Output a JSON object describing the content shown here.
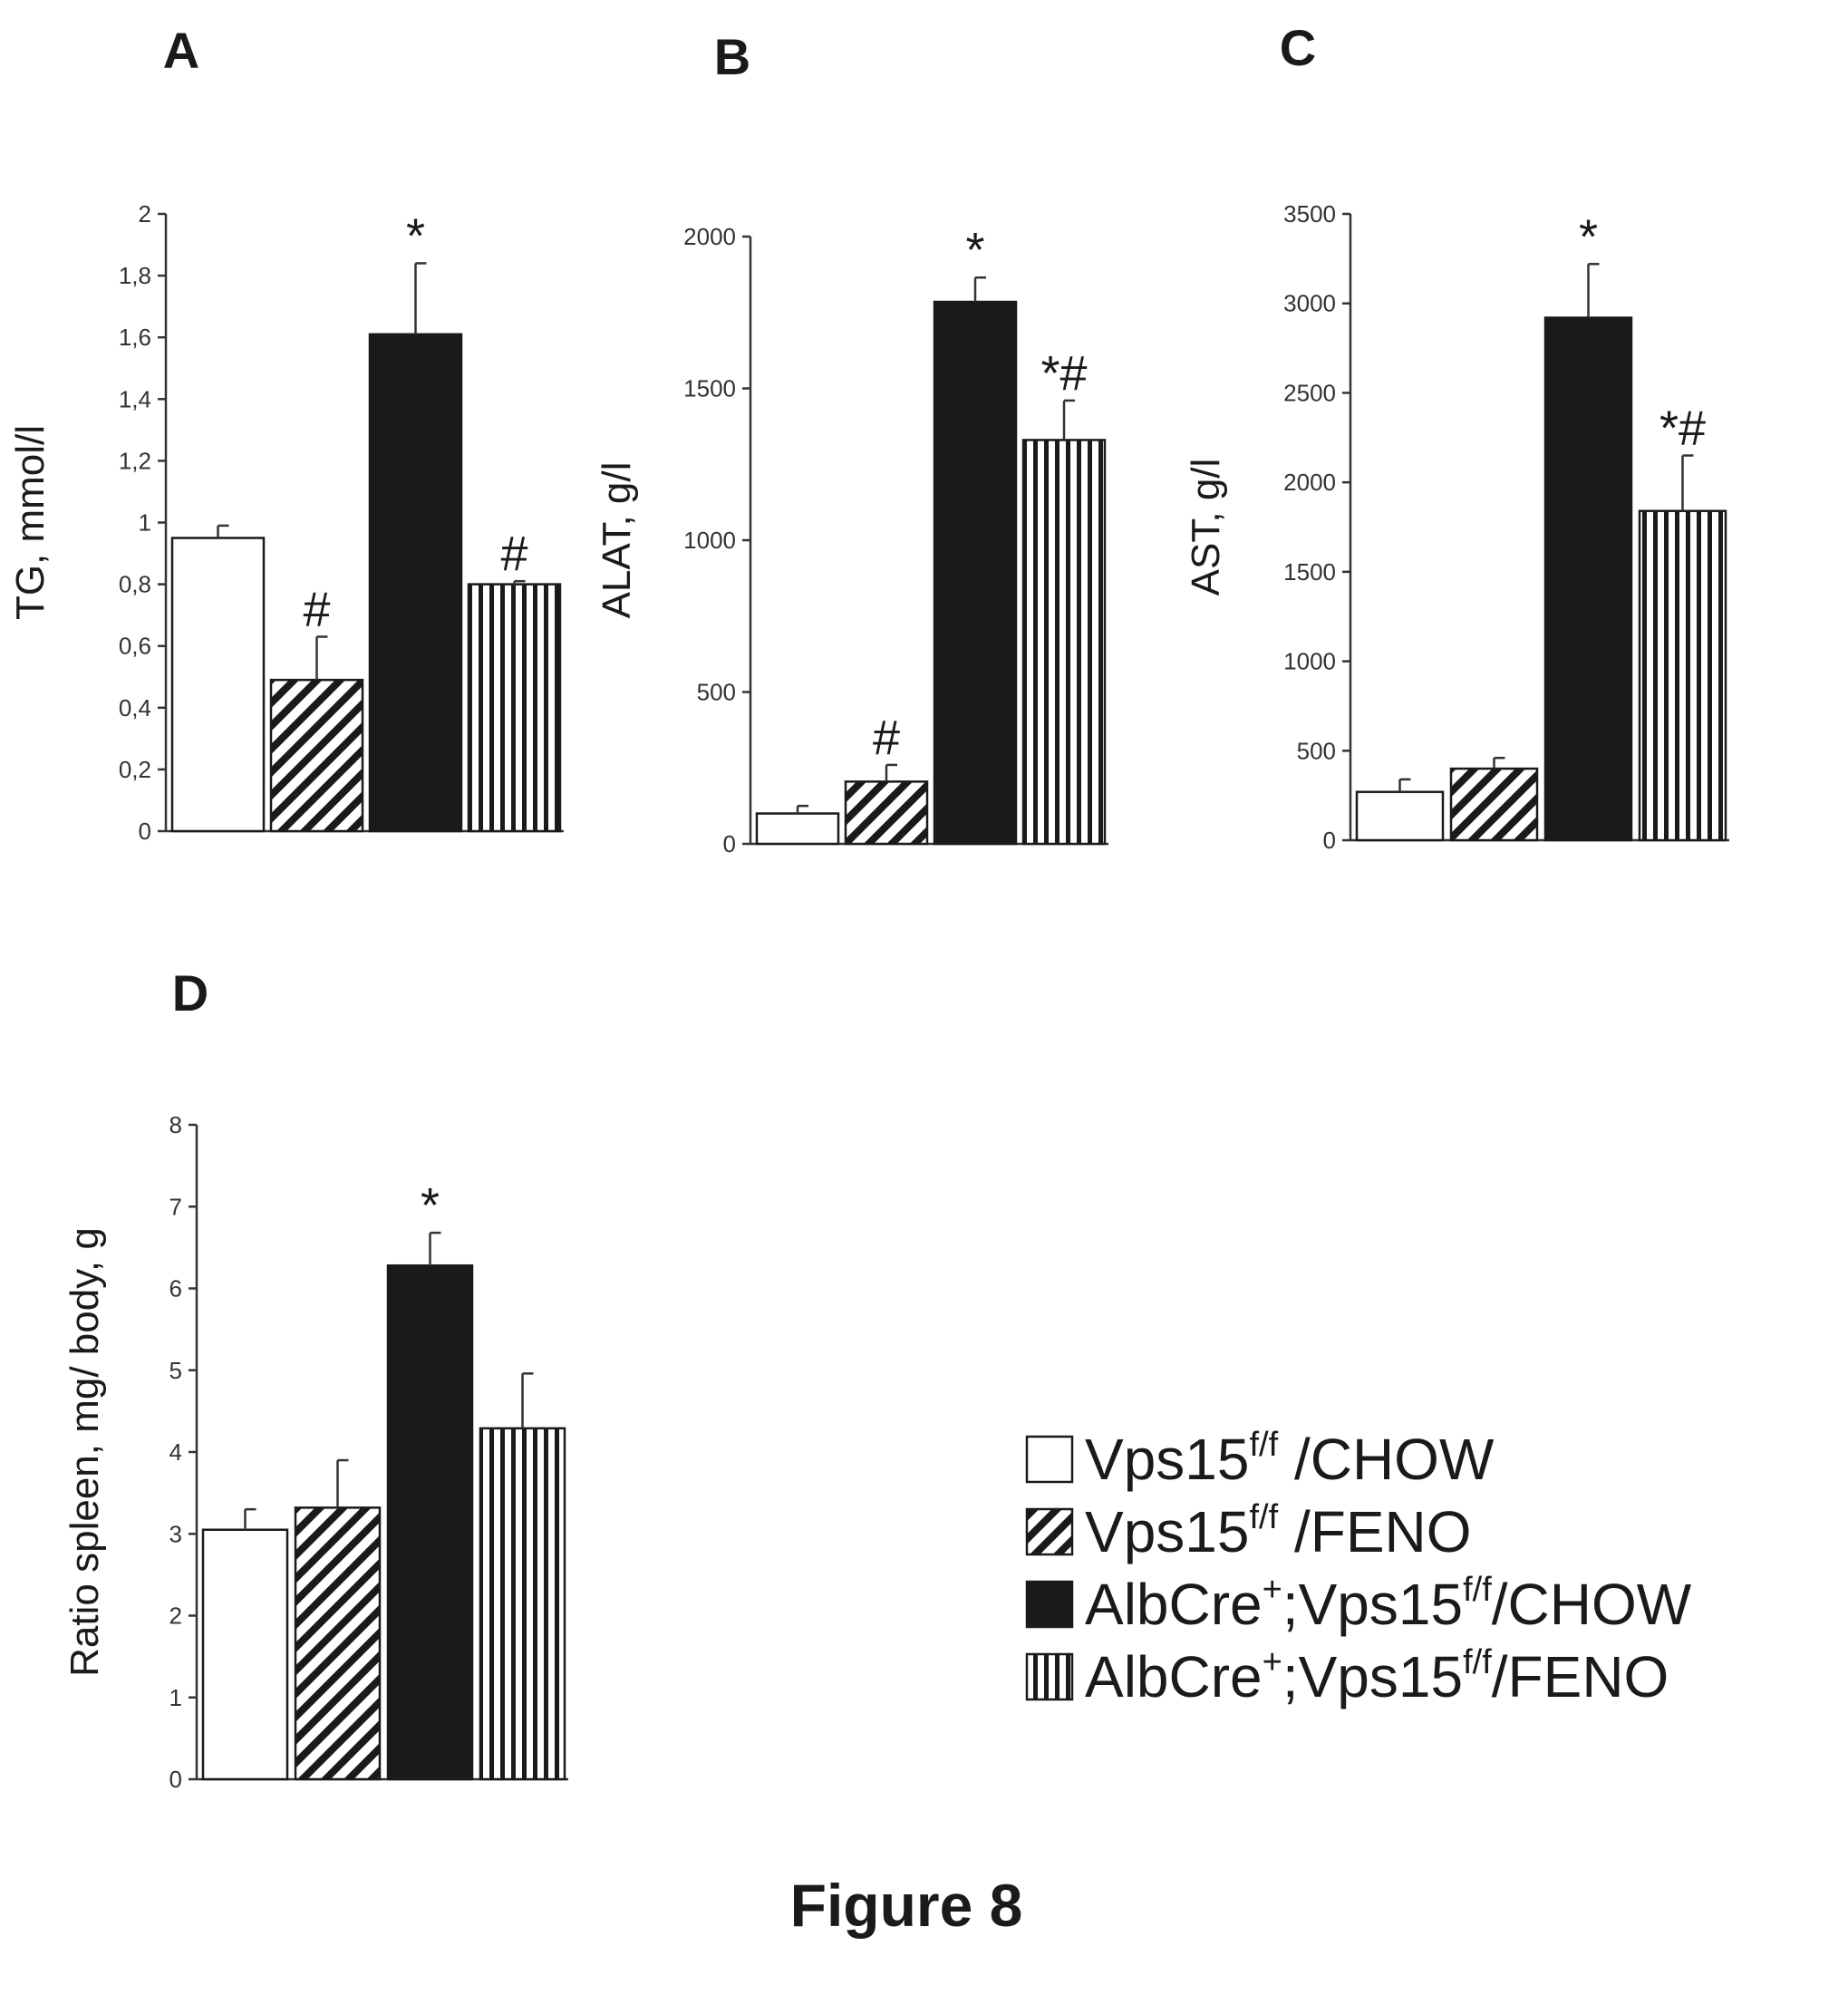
{
  "figure_caption": "Figure 8",
  "colors": {
    "ink": "#1a1a1a",
    "bar_black": "#1a1a1a",
    "bar_white": "#ffffff"
  },
  "legend": {
    "items": [
      {
        "fill": "white",
        "base": "Vps15",
        "sup": "f/f",
        "tail": " /CHOW",
        "prefix": "",
        "prefix_sup": ""
      },
      {
        "fill": "diag",
        "base": "Vps15",
        "sup": "f/f",
        "tail": " /FENO",
        "prefix": "",
        "prefix_sup": ""
      },
      {
        "fill": "black",
        "base": "Vps15",
        "sup": "f/f",
        "tail": "/CHOW",
        "prefix": "AlbCre",
        "prefix_sup": "+"
      },
      {
        "fill": "vert",
        "base": "Vps15",
        "sup": "f/f",
        "tail": "/FENO",
        "prefix": "AlbCre",
        "prefix_sup": "+"
      }
    ],
    "text": [
      "Vps15f/f /CHOW",
      "Vps15f/f /FENO",
      "AlbCre+;Vps15f/f/CHOW",
      "AlbCre+;Vps15f/f/FENO"
    ]
  },
  "chart_data": [
    {
      "panel": "A",
      "type": "bar",
      "ylabel": "TG, mmol/l",
      "ylim": [
        0,
        2
      ],
      "yticks": [
        "0",
        "0,2",
        "0,4",
        "0,6",
        "0,8",
        "1",
        "1,2",
        "1,4",
        "1,6",
        "1,8",
        "2"
      ],
      "series": [
        {
          "name": "Vps15f/f /CHOW",
          "value": 0.95,
          "error": 0.04,
          "sig": ""
        },
        {
          "name": "Vps15f/f /FENO",
          "value": 0.49,
          "error": 0.14,
          "sig": "#"
        },
        {
          "name": "AlbCre+;Vps15f/f/CHOW",
          "value": 1.61,
          "error": 0.23,
          "sig": "*"
        },
        {
          "name": "AlbCre+;Vps15f/f/FENO",
          "value": 0.8,
          "error": 0.01,
          "sig": "#"
        }
      ]
    },
    {
      "panel": "B",
      "type": "bar",
      "ylabel": "ALAT, g/l",
      "ylim": [
        0,
        2000
      ],
      "yticks": [
        "0",
        "500",
        "1000",
        "1500",
        "2000"
      ],
      "series": [
        {
          "name": "Vps15f/f /CHOW",
          "value": 100,
          "error": 25,
          "sig": ""
        },
        {
          "name": "Vps15f/f /FENO",
          "value": 205,
          "error": 55,
          "sig": "#"
        },
        {
          "name": "AlbCre+;Vps15f/f/CHOW",
          "value": 1785,
          "error": 80,
          "sig": "*"
        },
        {
          "name": "AlbCre+;Vps15f/f/FENO",
          "value": 1330,
          "error": 130,
          "sig": "*#"
        }
      ]
    },
    {
      "panel": "C",
      "type": "bar",
      "ylabel": "AST, g/l",
      "ylim": [
        0,
        3500
      ],
      "yticks": [
        "0",
        "500",
        "1000",
        "1500",
        "2000",
        "2500",
        "3000",
        "3500"
      ],
      "series": [
        {
          "name": "Vps15f/f /CHOW",
          "value": 270,
          "error": 70,
          "sig": ""
        },
        {
          "name": "Vps15f/f /FENO",
          "value": 400,
          "error": 60,
          "sig": ""
        },
        {
          "name": "AlbCre+;Vps15f/f/CHOW",
          "value": 2920,
          "error": 300,
          "sig": "*"
        },
        {
          "name": "AlbCre+;Vps15f/f/FENO",
          "value": 1840,
          "error": 310,
          "sig": "*#"
        }
      ]
    },
    {
      "panel": "D",
      "type": "bar",
      "ylabel": "Ratio spleen, mg/ body, g",
      "ylim": [
        0,
        8
      ],
      "yticks": [
        "0",
        "1",
        "2",
        "3",
        "4",
        "5",
        "6",
        "7",
        "8"
      ],
      "series": [
        {
          "name": "Vps15f/f /CHOW",
          "value": 3.05,
          "error": 0.25,
          "sig": ""
        },
        {
          "name": "Vps15f/f /FENO",
          "value": 3.32,
          "error": 0.58,
          "sig": ""
        },
        {
          "name": "AlbCre+;Vps15f/f/CHOW",
          "value": 6.28,
          "error": 0.4,
          "sig": "*"
        },
        {
          "name": "AlbCre+;Vps15f/f/FENO",
          "value": 4.29,
          "error": 0.67,
          "sig": ""
        }
      ]
    }
  ]
}
